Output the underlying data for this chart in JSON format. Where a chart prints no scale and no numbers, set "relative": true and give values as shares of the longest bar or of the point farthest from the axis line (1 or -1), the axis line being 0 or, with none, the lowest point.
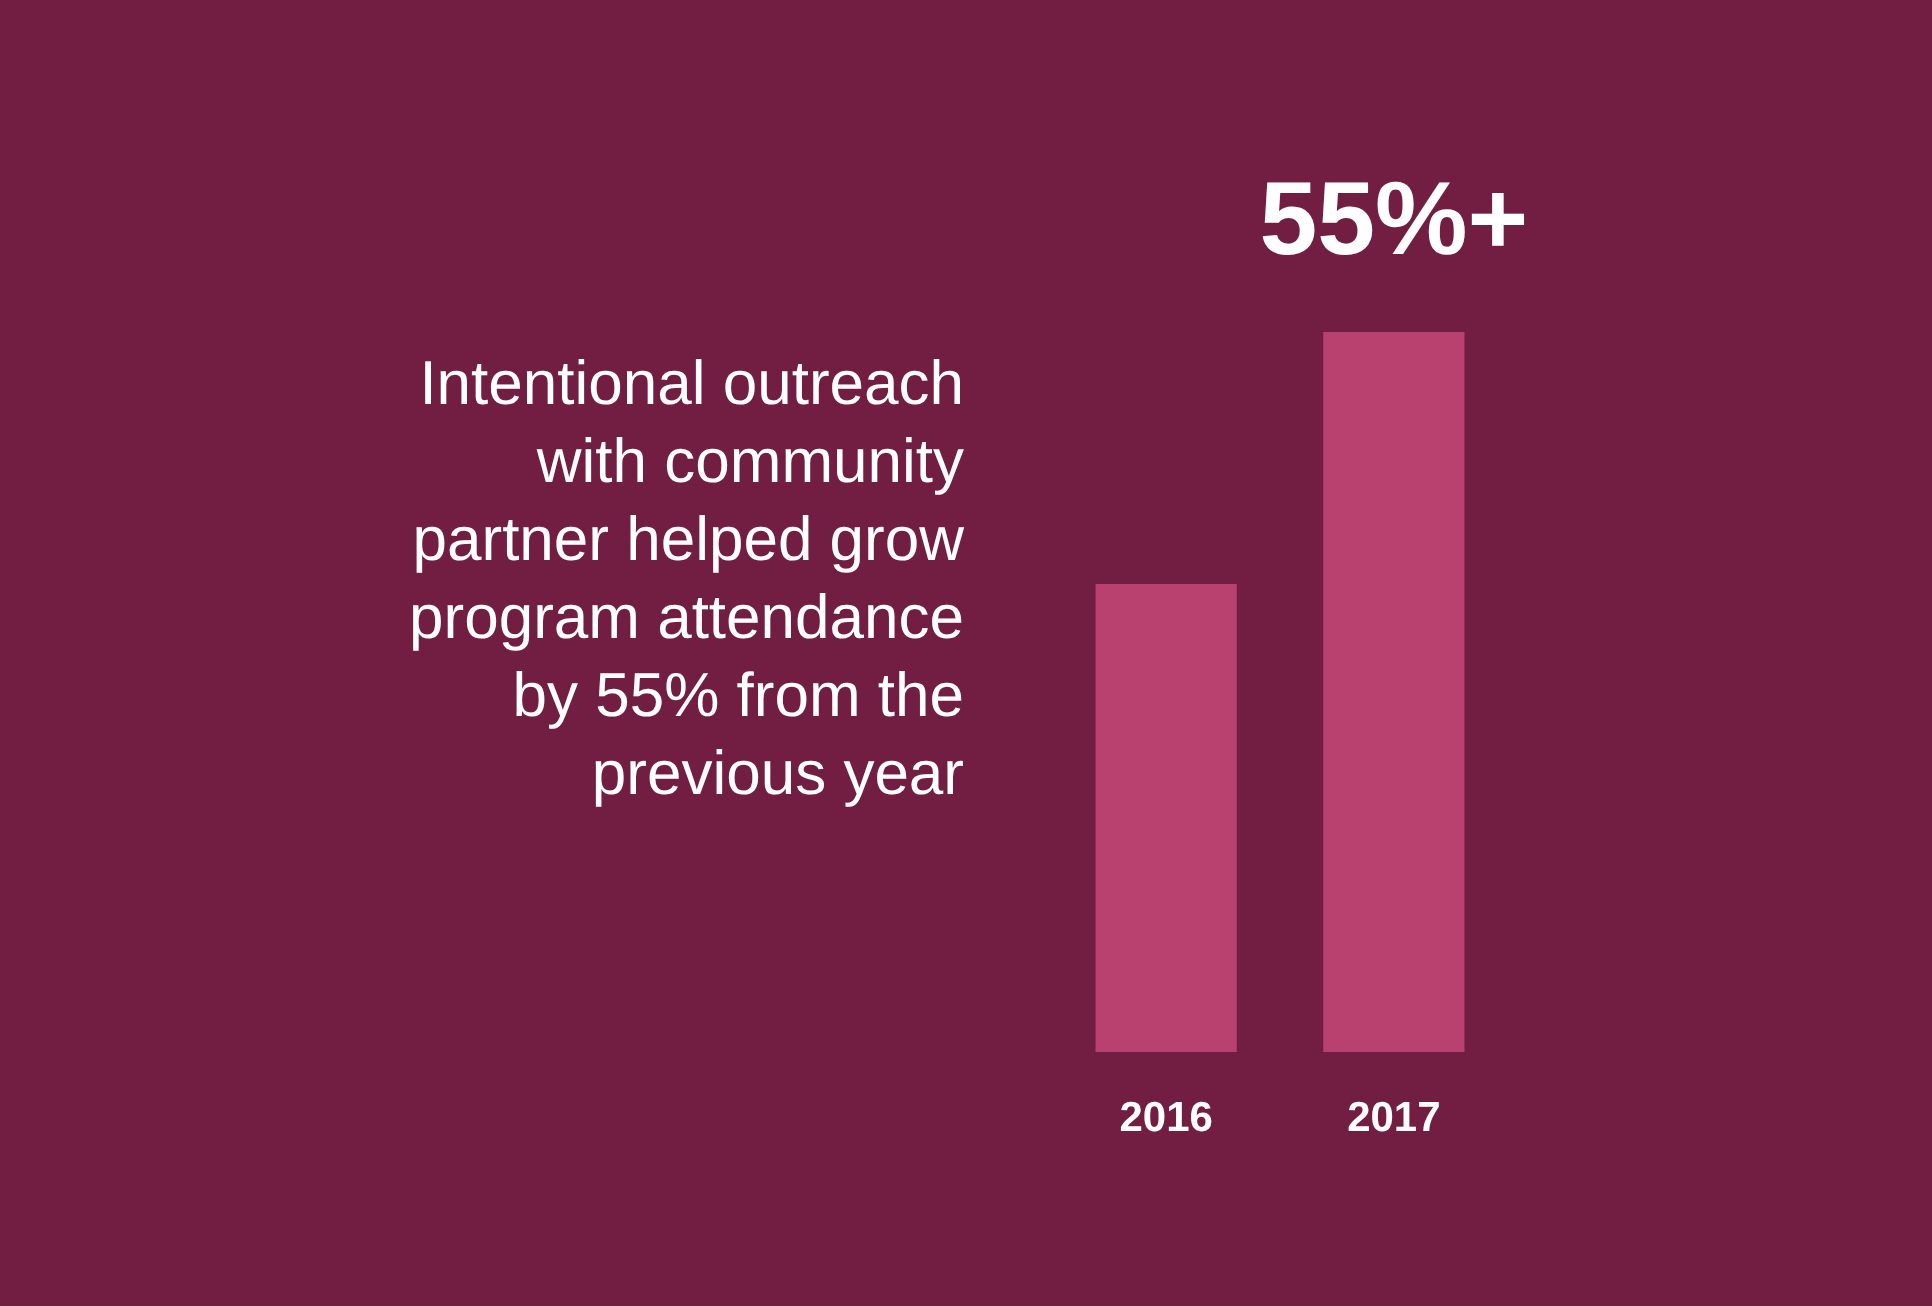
{
  "chart_data": {
    "type": "bar",
    "relative": true,
    "categories": [
      "2016",
      "2017"
    ],
    "values": [
      0.65,
      1
    ],
    "color": "#b8416f",
    "annotations": [
      "Intentional outreach with community partner helped grow program attendance by 55% from the previous year",
      {
        "text": "55%+",
        "x": "2017",
        "y": 1
      }
    ]
  }
}
